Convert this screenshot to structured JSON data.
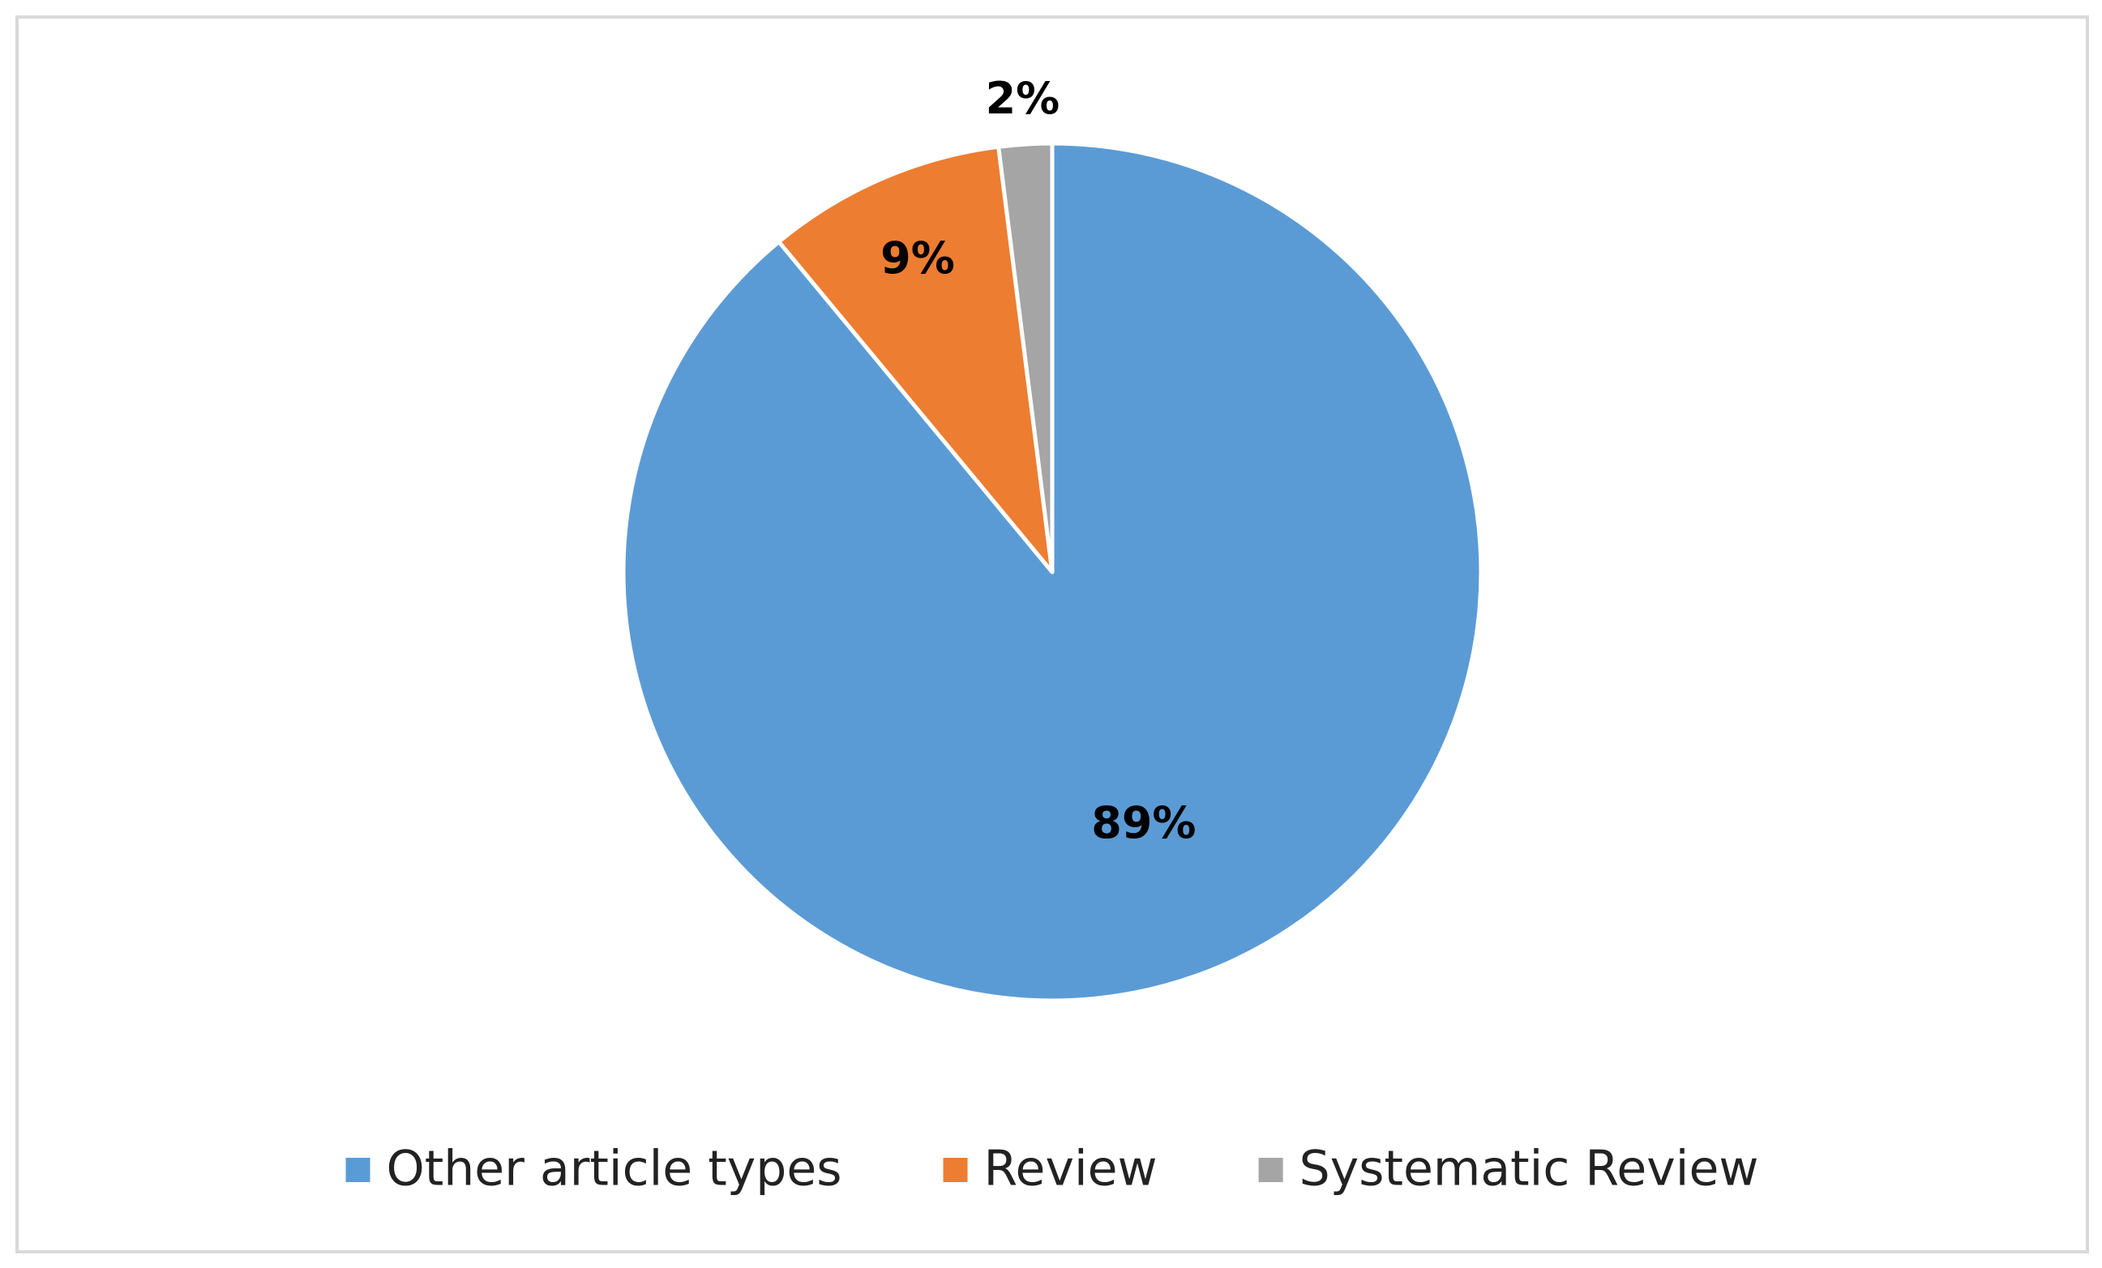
{
  "chart_data": {
    "type": "pie",
    "categories": [
      "Other article types",
      "Review",
      "Systematic Review"
    ],
    "values": [
      89,
      9,
      2
    ],
    "value_labels": [
      "89%",
      "9%",
      "2%"
    ],
    "colors": [
      "#5b9bd5",
      "#ed7d31",
      "#a5a5a5"
    ],
    "legend": "bottom"
  }
}
